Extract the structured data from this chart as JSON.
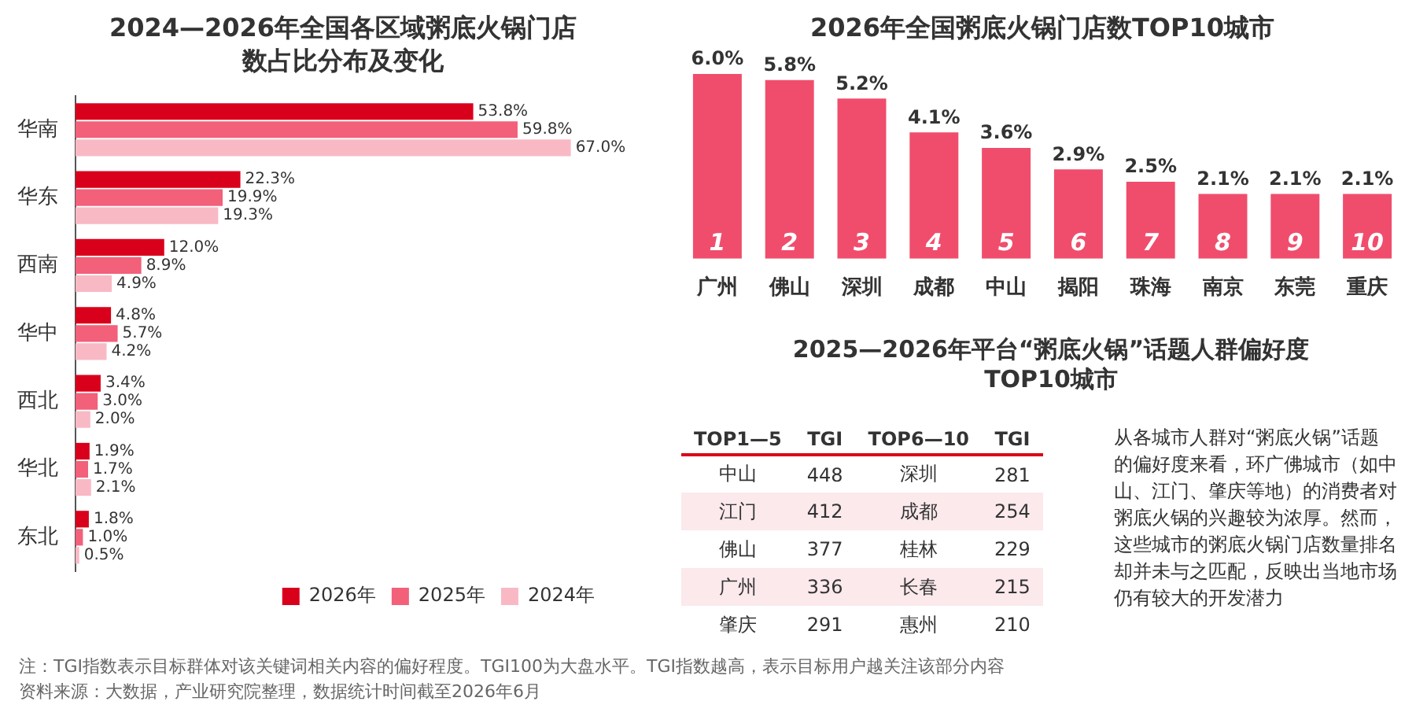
{
  "chart_data": [
    {
      "type": "bar",
      "orientation": "horizontal",
      "title": "2024—2026年全国各区域粥底火锅门店数占比分布及变化",
      "categories": [
        "华南",
        "华东",
        "西南",
        "华中",
        "西北",
        "华北",
        "东北"
      ],
      "legend": "bottom right",
      "series": [
        {
          "name": "2026年",
          "color": "#d9001b",
          "values": [
            53.8,
            22.3,
            12.0,
            4.8,
            3.4,
            1.9,
            1.8
          ],
          "value_labels": [
            "53.8%",
            "22.3%",
            "12.0%",
            "4.8%",
            "3.4%",
            "1.9%",
            "1.8%"
          ]
        },
        {
          "name": "2025年",
          "color": "#f2607a",
          "values": [
            59.8,
            19.9,
            8.9,
            5.7,
            3.0,
            1.7,
            1.0
          ],
          "value_labels": [
            "59.8%",
            "19.9%",
            "8.9%",
            "5.7%",
            "3.0%",
            "1.7%",
            "1.0%"
          ]
        },
        {
          "name": "2024年",
          "color": "#f8b9c5",
          "values": [
            67.0,
            19.3,
            4.9,
            4.2,
            2.0,
            2.1,
            0.5
          ],
          "value_labels": [
            "67.0%",
            "19.3%",
            "4.9%",
            "4.2%",
            "2.0%",
            "2.1%",
            "0.5%"
          ]
        }
      ]
    },
    {
      "type": "bar",
      "title": "2026年全国粥底火锅门店数TOP10城市",
      "categories": [
        "广州",
        "佛山",
        "深圳",
        "成都",
        "中山",
        "揭阳",
        "珠海",
        "南京",
        "东莞",
        "重庆"
      ],
      "color": "#f04d6c",
      "values": [
        6.0,
        5.8,
        5.2,
        4.1,
        3.6,
        2.9,
        2.5,
        2.1,
        2.1,
        2.1
      ],
      "value_labels": [
        "6.0%",
        "5.8%",
        "5.2%",
        "4.1%",
        "3.6%",
        "2.9%",
        "2.5%",
        "2.1%",
        "2.1%",
        "2.1%"
      ],
      "annotations": [
        "1",
        "2",
        "3",
        "4",
        "5",
        "6",
        "7",
        "8",
        "9",
        "10"
      ]
    },
    {
      "type": "other",
      "title": "2025—2026年平台“粥底火锅”话题人群偏好度TOP10城市",
      "categories": [
        "中山",
        "江门",
        "佛山",
        "广州",
        "肇庆",
        "深圳",
        "成都",
        "桂林",
        "长春",
        "惠州"
      ],
      "values": [
        448,
        412,
        377,
        336,
        291,
        281,
        254,
        229,
        215,
        210
      ],
      "data_labels": true,
      "annotations": [
        "TOP1—5",
        "TGI",
        "TOP6—10",
        "TGI",
        "从各城市人群对“粥底火锅”话题的偏好度来看，环广佛城市（如中山、江门、肇庆等地）的消费者对粥底火锅的兴趣较为浓厚。然而，这些城市的粥底火锅门店数量排名却并未与之匹配，反映出当地市场仍有较大的开发潜力",
        "注：TGI指数表示目标群体对该关键词相关内容的偏好程度。TGI100为大盘水平。TGI指数越高，表示目标用户越关注该部分内容",
        "资料来源：大数据，产业研究院整理，数据统计时间截至2026年6月"
      ]
    }
  ]
}
